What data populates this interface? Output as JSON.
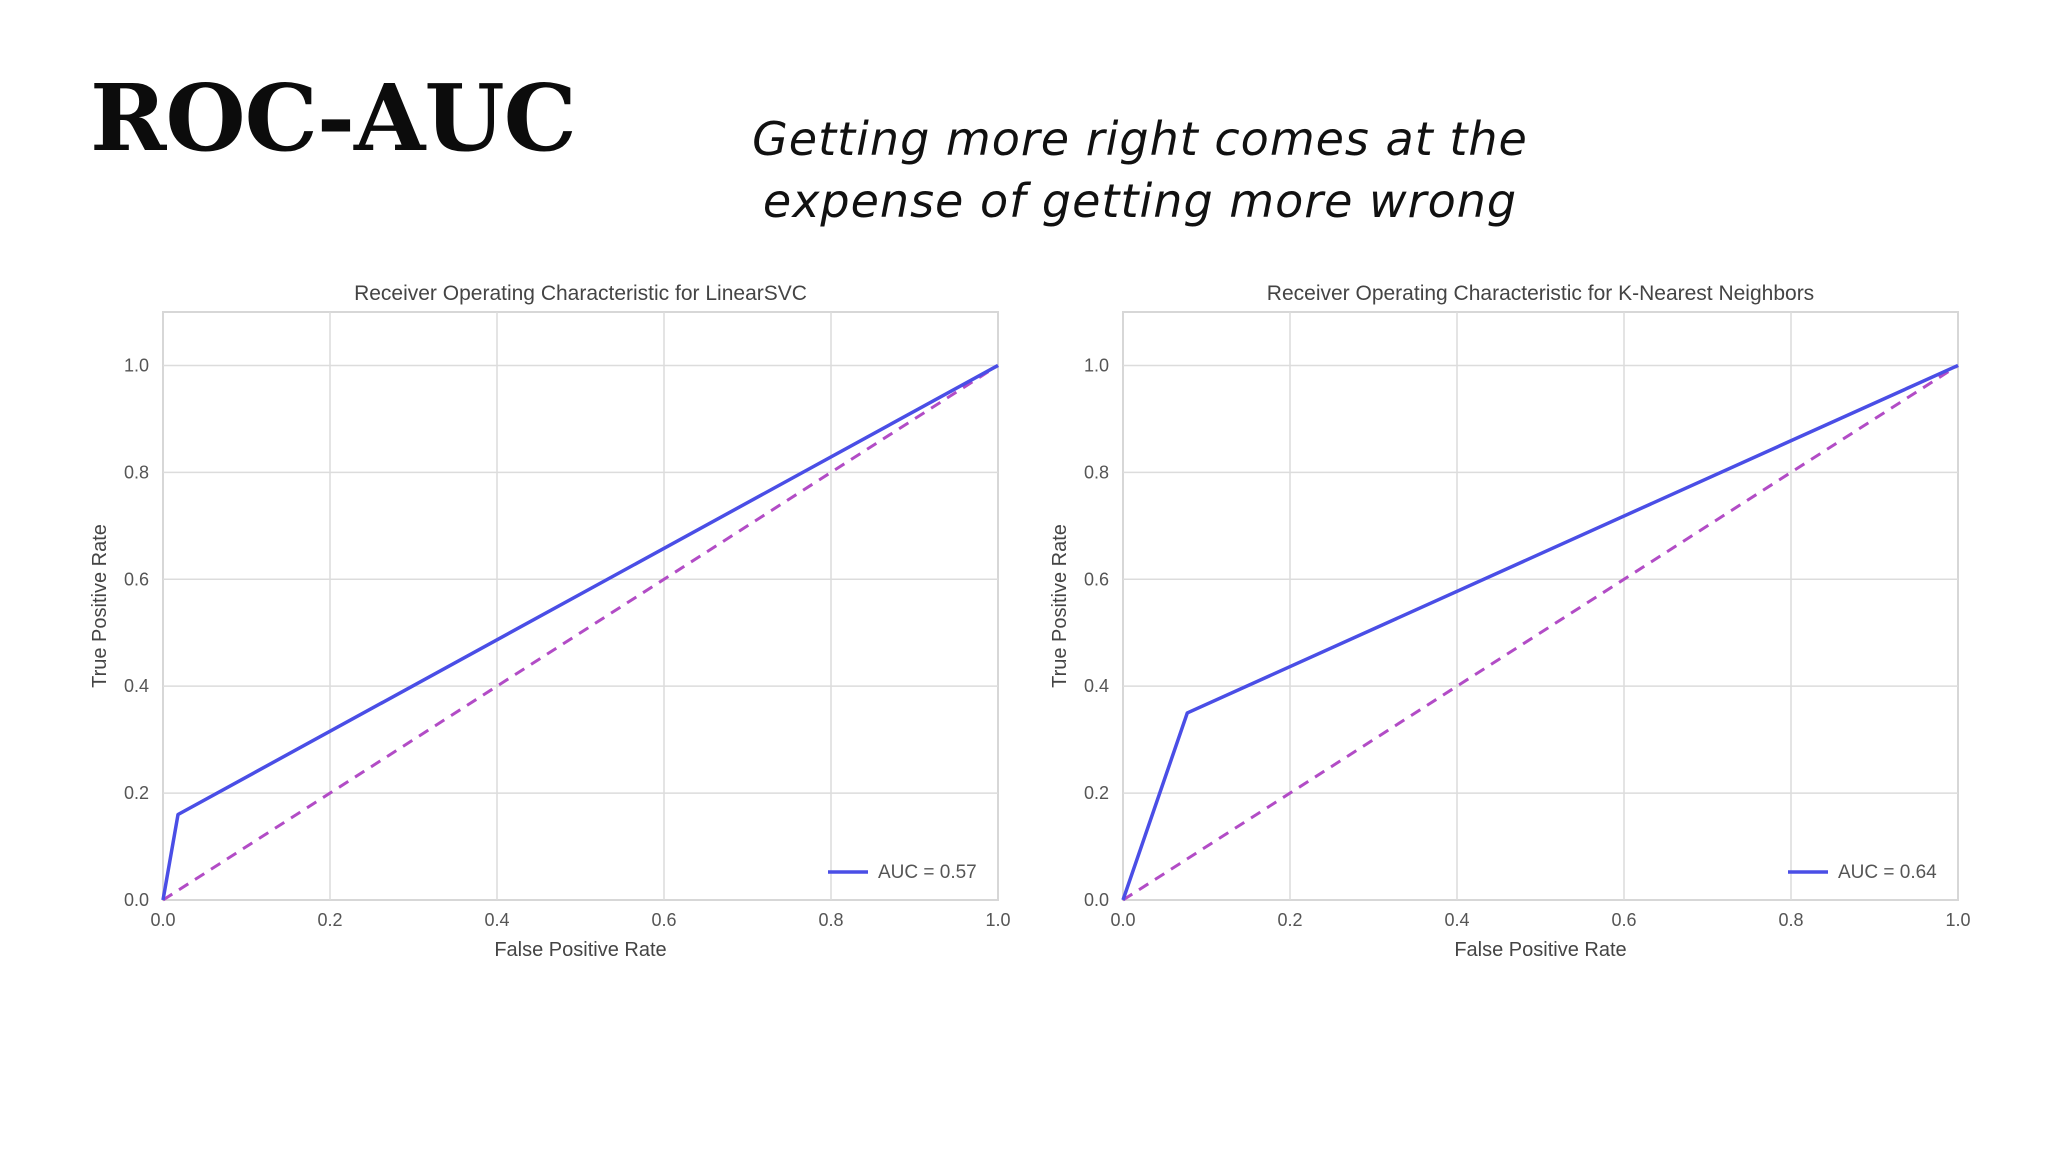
{
  "slide": {
    "title": "ROC-AUC",
    "subtitle_line1": "Getting more right comes at the",
    "subtitle_line2": "expense of getting more wrong"
  },
  "colors": {
    "roc_curve": "#4a4ee6",
    "chance_line": "#b24cc6",
    "grid": "#dcdcdc",
    "title_text": "#0c0c0c"
  },
  "chart_data": [
    {
      "type": "line",
      "title": "Receiver Operating Characteristic for LinearSVC",
      "xlabel": "False Positive Rate",
      "ylabel": "True Positive Rate",
      "xlim": [
        0,
        1
      ],
      "ylim": [
        0,
        1.1
      ],
      "xticks": [
        "0.0",
        "0.2",
        "0.4",
        "0.6",
        "0.8",
        "1.0"
      ],
      "yticks": [
        "0.0",
        "0.2",
        "0.4",
        "0.6",
        "0.8",
        "1.0"
      ],
      "grid": true,
      "legend_position": "lower-right",
      "series": [
        {
          "name": "AUC = 0.57",
          "x": [
            0,
            0.018,
            1
          ],
          "y": [
            0,
            0.16,
            1
          ]
        }
      ],
      "reference": {
        "x": [
          0,
          1
        ],
        "y": [
          0,
          1
        ],
        "style": "dashed"
      }
    },
    {
      "type": "line",
      "title": "Receiver Operating Characteristic for K-Nearest Neighbors",
      "xlabel": "False Positive Rate",
      "ylabel": "True Positive Rate",
      "xlim": [
        0,
        1
      ],
      "ylim": [
        0,
        1.1
      ],
      "xticks": [
        "0.0",
        "0.2",
        "0.4",
        "0.6",
        "0.8",
        "1.0"
      ],
      "yticks": [
        "0.0",
        "0.2",
        "0.4",
        "0.6",
        "0.8",
        "1.0"
      ],
      "grid": true,
      "legend_position": "lower-right",
      "series": [
        {
          "name": "AUC = 0.64",
          "x": [
            0,
            0.077,
            1
          ],
          "y": [
            0,
            0.35,
            1
          ]
        }
      ],
      "reference": {
        "x": [
          0,
          1
        ],
        "y": [
          0,
          1
        ],
        "style": "dashed"
      }
    }
  ]
}
